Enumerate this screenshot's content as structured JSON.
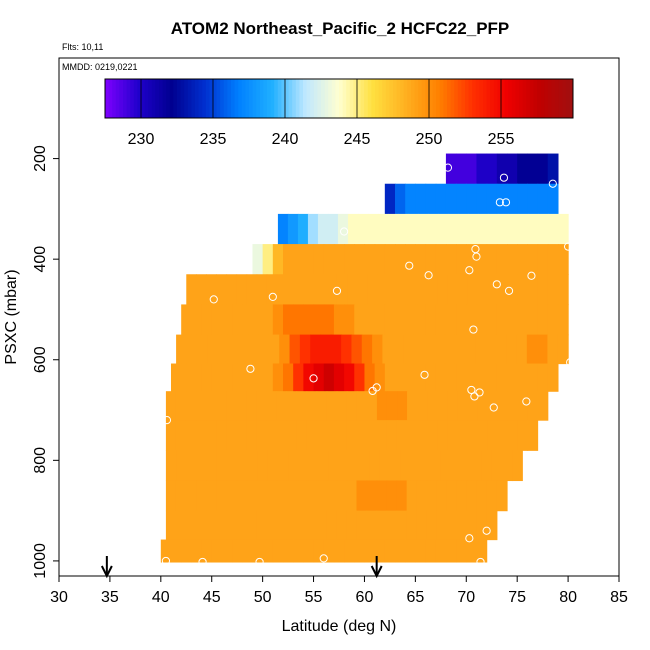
{
  "chart_data": {
    "type": "heatmap",
    "title": "ATOM2 Northeast_Pacific_2 HCFC22_PFP",
    "flights_label": "Flts: 10,11",
    "dates_label": "MMDD: 0219,0221",
    "xlabel": "Latitude (deg N)",
    "ylabel": "PSXC (mbar)",
    "xlim": [
      30,
      85
    ],
    "ylim": [
      1030,
      0
    ],
    "x_ticks": [
      30,
      35,
      40,
      45,
      50,
      55,
      60,
      65,
      70,
      75,
      80,
      85
    ],
    "x_tick_labels": [
      "30",
      "35",
      "40",
      "45",
      "50",
      "55",
      "60",
      "65",
      "70",
      "75",
      "80",
      "85"
    ],
    "y_ticks": [
      200,
      400,
      600,
      800,
      1000
    ],
    "y_tick_labels": [
      "200",
      "400",
      "600",
      "800",
      "1000"
    ],
    "colorbar": {
      "min": 227.5,
      "max": 260,
      "ticks": [
        230,
        235,
        240,
        245,
        250,
        255
      ],
      "tick_labels": [
        "230",
        "235",
        "240",
        "245",
        "250",
        "255"
      ],
      "colors": [
        "#7f00ff",
        "#2000cc",
        "#000090",
        "#0030d0",
        "#0080ff",
        "#20b0ff",
        "#c0e8ff",
        "#ffffd0",
        "#ffe040",
        "#ffb020",
        "#ff8000",
        "#ff3000",
        "#f00000",
        "#c00000",
        "#a01010"
      ]
    },
    "arrows_latitude": [
      34.7,
      61.2
    ],
    "rows": [
      {
        "p": 220,
        "x0": 68,
        "x1": 79,
        "vals": [
          229,
          229,
          229,
          230,
          230,
          231,
          231,
          232,
          232,
          232,
          233
        ]
      },
      {
        "p": 280,
        "x0": 62,
        "x1": 79,
        "vals": [
          234,
          236,
          237,
          237,
          237,
          237,
          237,
          237,
          237,
          237,
          237,
          237,
          237,
          237,
          237,
          237,
          237
        ]
      },
      {
        "p": 340,
        "x0": 51.5,
        "x1": 80,
        "vals": [
          237,
          238,
          239,
          241,
          242,
          242,
          243,
          244,
          244,
          244,
          244,
          244,
          244,
          244,
          244,
          244,
          244,
          244,
          244,
          244,
          244,
          244,
          244,
          244,
          244,
          244,
          244,
          244,
          244
        ]
      },
      {
        "p": 400,
        "x0": 49,
        "x1": 80,
        "vals": [
          243,
          245,
          248,
          249,
          249,
          249,
          249,
          249,
          249,
          249,
          249,
          249,
          249,
          249,
          249,
          249,
          249,
          249,
          249,
          249,
          249,
          249,
          249,
          249,
          249,
          249,
          249,
          249,
          249,
          249,
          249
        ]
      },
      {
        "p": 460,
        "x0": 42.5,
        "x1": 80,
        "vals": [
          249,
          249,
          249,
          249,
          249,
          249,
          249,
          249,
          249,
          249,
          249,
          249,
          249,
          249,
          249,
          249,
          249,
          249,
          249,
          249,
          249,
          249,
          249,
          249,
          249,
          249,
          249,
          249,
          249,
          249,
          249,
          249,
          249,
          249,
          249,
          249,
          249,
          249
        ]
      },
      {
        "p": 520,
        "x0": 42,
        "x1": 80,
        "vals": [
          249,
          249,
          249,
          249,
          249,
          249,
          249,
          249,
          249,
          250,
          251,
          251,
          251,
          251,
          251,
          250,
          250,
          249,
          249,
          249,
          249,
          249,
          249,
          249,
          249,
          249,
          249,
          249,
          249,
          249,
          249,
          249,
          249,
          249,
          249,
          249,
          249,
          249
        ]
      },
      {
        "p": 580,
        "x0": 41.5,
        "x1": 80,
        "vals": [
          249,
          249,
          249,
          249,
          249,
          249,
          249,
          249,
          249,
          249,
          250,
          252,
          253,
          254,
          254,
          254,
          253,
          252,
          251,
          250,
          249,
          249,
          249,
          249,
          249,
          249,
          249,
          249,
          249,
          249,
          249,
          249,
          249,
          249,
          250,
          250,
          249,
          249
        ]
      },
      {
        "p": 635,
        "x0": 41,
        "x1": 79,
        "vals": [
          249,
          249,
          249,
          249,
          249,
          249,
          249,
          249,
          249,
          249,
          250,
          251,
          253,
          255,
          256,
          257,
          256,
          255,
          253,
          251,
          250,
          249,
          249,
          249,
          249,
          249,
          249,
          249,
          249,
          249,
          249,
          249,
          249,
          249,
          249,
          249,
          249,
          249
        ]
      },
      {
        "p": 690,
        "x0": 40.5,
        "x1": 78,
        "vals": [
          249,
          249,
          249,
          249,
          249,
          249,
          249,
          249,
          249,
          249,
          249,
          249,
          249,
          249,
          249,
          249,
          249,
          249,
          249,
          249,
          249,
          250,
          250,
          250,
          249,
          249,
          249,
          249,
          249,
          249,
          249,
          249,
          249,
          249,
          249,
          249,
          249,
          249
        ]
      },
      {
        "p": 750,
        "x0": 40.5,
        "x1": 77,
        "vals": [
          249,
          249,
          249,
          249,
          249,
          249,
          249,
          249,
          249,
          249,
          249,
          249,
          249,
          249,
          249,
          249,
          249,
          249,
          249,
          249,
          249,
          249,
          249,
          249,
          249,
          249,
          249,
          249,
          249,
          249,
          249,
          249,
          249,
          249,
          249,
          249,
          249
        ]
      },
      {
        "p": 810,
        "x0": 40.5,
        "x1": 75.5,
        "vals": [
          249,
          249,
          249,
          249,
          249,
          249,
          249,
          249,
          249,
          249,
          249,
          249,
          249,
          249,
          249,
          249,
          249,
          249,
          249,
          249,
          249,
          249,
          249,
          249,
          249,
          249,
          249,
          249,
          249,
          249,
          249,
          249,
          249,
          249,
          249
        ]
      },
      {
        "p": 870,
        "x0": 40.5,
        "x1": 74,
        "vals": [
          249,
          249,
          249,
          249,
          249,
          249,
          249,
          249,
          249,
          249,
          249,
          249,
          249,
          249,
          249,
          249,
          249,
          249,
          249,
          250,
          250,
          250,
          250,
          250,
          249,
          249,
          249,
          249,
          249,
          249,
          249,
          249,
          249,
          249
        ]
      },
      {
        "p": 930,
        "x0": 40.5,
        "x1": 73,
        "vals": [
          249,
          249,
          249,
          249,
          249,
          249,
          249,
          249,
          249,
          249,
          249,
          249,
          249,
          249,
          249,
          249,
          249,
          249,
          249,
          249,
          249,
          249,
          249,
          249,
          249,
          249,
          249,
          249,
          249,
          249,
          249,
          249,
          249
        ]
      },
      {
        "p": 985,
        "x0": 40,
        "x1": 72,
        "vals": [
          249,
          249,
          249,
          249,
          249,
          249,
          249,
          249,
          249,
          249,
          249,
          249,
          249,
          249,
          249,
          249,
          249,
          249,
          249,
          249,
          249,
          249,
          249,
          249,
          249,
          249,
          249,
          249,
          249,
          249,
          249,
          249
        ]
      }
    ],
    "samples": [
      {
        "lat": 68.2,
        "p": 218
      },
      {
        "lat": 73.7,
        "p": 238
      },
      {
        "lat": 78.5,
        "p": 250
      },
      {
        "lat": 73.3,
        "p": 287
      },
      {
        "lat": 73.9,
        "p": 287
      },
      {
        "lat": 58.0,
        "p": 345
      },
      {
        "lat": 80.0,
        "p": 375
      },
      {
        "lat": 70.9,
        "p": 380
      },
      {
        "lat": 71.0,
        "p": 395
      },
      {
        "lat": 64.4,
        "p": 413
      },
      {
        "lat": 70.3,
        "p": 422
      },
      {
        "lat": 42.8,
        "p": 420
      },
      {
        "lat": 66.3,
        "p": 432
      },
      {
        "lat": 76.4,
        "p": 433
      },
      {
        "lat": 73.0,
        "p": 450
      },
      {
        "lat": 74.2,
        "p": 463
      },
      {
        "lat": 57.3,
        "p": 463
      },
      {
        "lat": 51.0,
        "p": 475
      },
      {
        "lat": 45.2,
        "p": 480
      },
      {
        "lat": 70.7,
        "p": 540
      },
      {
        "lat": 80.2,
        "p": 605
      },
      {
        "lat": 48.8,
        "p": 618
      },
      {
        "lat": 65.9,
        "p": 630
      },
      {
        "lat": 55.0,
        "p": 637
      },
      {
        "lat": 61.2,
        "p": 655
      },
      {
        "lat": 60.8,
        "p": 662
      },
      {
        "lat": 70.5,
        "p": 660
      },
      {
        "lat": 71.3,
        "p": 665
      },
      {
        "lat": 70.8,
        "p": 673
      },
      {
        "lat": 75.9,
        "p": 683
      },
      {
        "lat": 72.7,
        "p": 695
      },
      {
        "lat": 40.6,
        "p": 720
      },
      {
        "lat": 72.0,
        "p": 940
      },
      {
        "lat": 70.3,
        "p": 955
      },
      {
        "lat": 56.0,
        "p": 995
      },
      {
        "lat": 40.5,
        "p": 1000
      },
      {
        "lat": 44.1,
        "p": 1002
      },
      {
        "lat": 49.7,
        "p": 1002
      },
      {
        "lat": 71.4,
        "p": 1002
      }
    ]
  }
}
